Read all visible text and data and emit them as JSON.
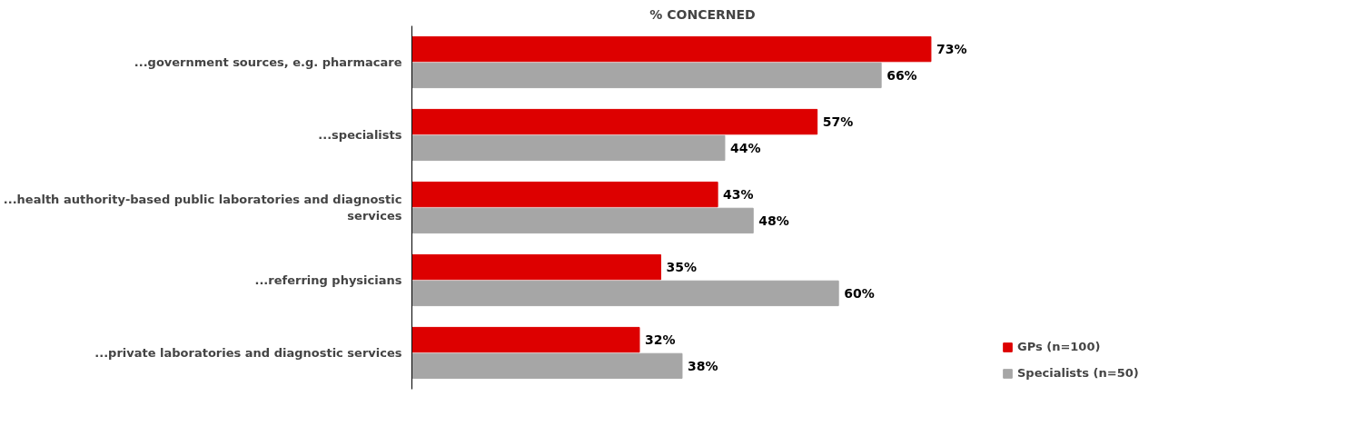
{
  "chart_data": {
    "type": "bar",
    "orientation": "horizontal",
    "title": "% CONCERNED",
    "categories": [
      "...government sources, e.g. pharmacare",
      "...specialists",
      "...health authority-based public laboratories and diagnostic services",
      "...referring physicians",
      "...private laboratories and diagnostic services"
    ],
    "series": [
      {
        "name": "GPs (n=100)",
        "color": "#dd0000",
        "values": [
          73,
          57,
          43,
          35,
          32
        ],
        "value_labels": [
          "73%",
          "57%",
          "43%",
          "35%",
          "32%"
        ]
      },
      {
        "name": "Specialists (n=50)",
        "color": "#a6a6a6",
        "values": [
          66,
          44,
          48,
          60,
          38
        ],
        "value_labels": [
          "66%",
          "44%",
          "48%",
          "60%",
          "38%"
        ]
      }
    ],
    "grid": false,
    "legend": "bottom right"
  }
}
